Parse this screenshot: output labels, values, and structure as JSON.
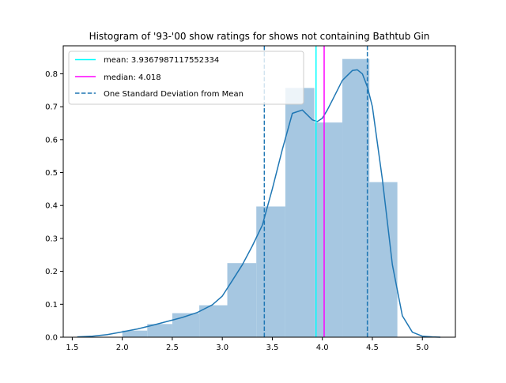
{
  "chart_data": {
    "type": "bar",
    "title": "Histogram of '93-'00 show ratings for shows not containing Bathtub Gin",
    "xlabel": "",
    "ylabel": "",
    "xlim": [
      1.41,
      5.33
    ],
    "ylim": [
      0,
      0.885
    ],
    "x_ticks": [
      "1.5",
      "2.0",
      "2.5",
      "3.0",
      "3.5",
      "4.0",
      "4.5",
      "5.0"
    ],
    "y_ticks": [
      "0.0",
      "0.1",
      "0.2",
      "0.3",
      "0.4",
      "0.5",
      "0.6",
      "0.7",
      "0.8"
    ],
    "grid": false,
    "legend_position": "top-left",
    "bars": [
      {
        "x0": 2.0,
        "x1": 2.25,
        "value": 0.02
      },
      {
        "x0": 2.25,
        "x1": 2.5,
        "value": 0.04
      },
      {
        "x0": 2.5,
        "x1": 2.77,
        "value": 0.073
      },
      {
        "x0": 2.77,
        "x1": 3.05,
        "value": 0.097
      },
      {
        "x0": 3.05,
        "x1": 3.34,
        "value": 0.225
      },
      {
        "x0": 3.34,
        "x1": 3.63,
        "value": 0.397
      },
      {
        "x0": 3.63,
        "x1": 3.92,
        "value": 0.757
      },
      {
        "x0": 3.92,
        "x1": 4.2,
        "value": 0.652
      },
      {
        "x0": 4.2,
        "x1": 4.47,
        "value": 0.845
      },
      {
        "x0": 4.47,
        "x1": 4.75,
        "value": 0.471
      }
    ],
    "kde": {
      "x": [
        1.55,
        1.7,
        1.85,
        2.0,
        2.15,
        2.3,
        2.45,
        2.6,
        2.75,
        2.9,
        3.0,
        3.1,
        3.2,
        3.3,
        3.4,
        3.5,
        3.6,
        3.7,
        3.8,
        3.9,
        3.95,
        4.0,
        4.05,
        4.1,
        4.2,
        4.3,
        4.35,
        4.4,
        4.45,
        4.5,
        4.6,
        4.7,
        4.8,
        4.9,
        5.0,
        5.1,
        5.18
      ],
      "y": [
        0.001,
        0.003,
        0.008,
        0.016,
        0.025,
        0.036,
        0.048,
        0.06,
        0.075,
        0.098,
        0.125,
        0.172,
        0.22,
        0.277,
        0.34,
        0.45,
        0.57,
        0.68,
        0.69,
        0.66,
        0.655,
        0.665,
        0.69,
        0.72,
        0.78,
        0.81,
        0.812,
        0.8,
        0.76,
        0.7,
        0.48,
        0.22,
        0.065,
        0.015,
        0.003,
        0.001,
        0.0
      ]
    },
    "mean": 3.9367987117552334,
    "median": 4.018,
    "std_lines": [
      3.42,
      4.45
    ],
    "colors": {
      "bars": "#a6c7e1",
      "kde": "#1f77b4",
      "mean": "#00ffff",
      "median": "#ff00ff",
      "std": "#1f77b4"
    },
    "legend": [
      {
        "label": "mean: 3.9367987117552334",
        "style": "solid",
        "color": "#00ffff"
      },
      {
        "label": "median: 4.018",
        "style": "solid",
        "color": "#ff00ff"
      },
      {
        "label": "One Standard Deviation from Mean",
        "style": "dashed",
        "color": "#1f77b4"
      }
    ]
  }
}
